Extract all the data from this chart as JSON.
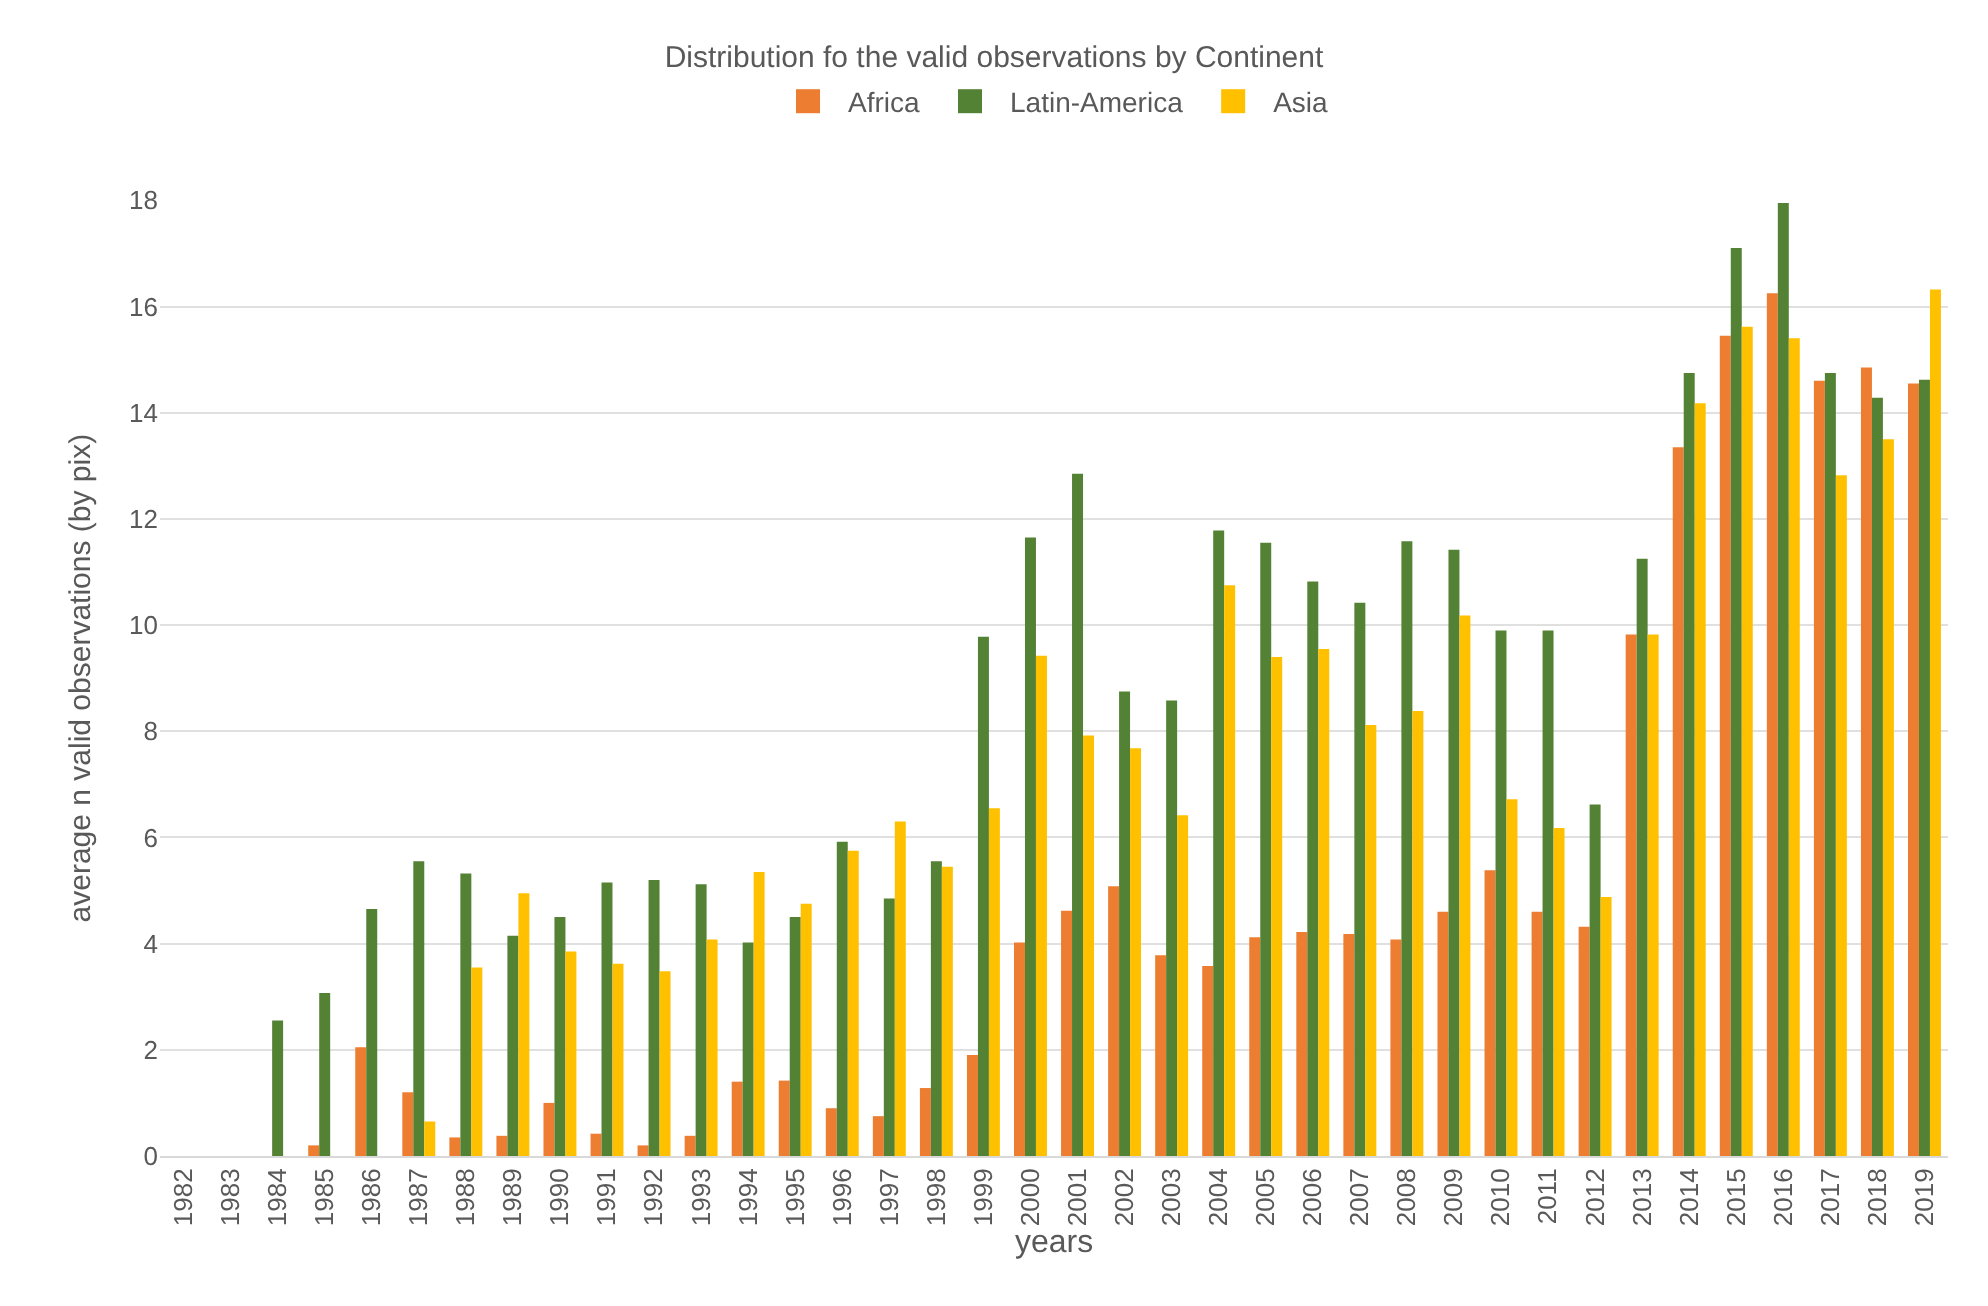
{
  "chart_data": {
    "type": "bar",
    "title": "Distribution fo the valid observations by Continent",
    "xlabel": "years",
    "ylabel": "average n valid observations (by pix)",
    "categories": [
      "1982",
      "1983",
      "1984",
      "1985",
      "1986",
      "1987",
      "1988",
      "1989",
      "1990",
      "1991",
      "1992",
      "1993",
      "1994",
      "1995",
      "1996",
      "1997",
      "1998",
      "1999",
      "2000",
      "2001",
      "2002",
      "2003",
      "2004",
      "2005",
      "2006",
      "2007",
      "2008",
      "2009",
      "2010",
      "2011",
      "2012",
      "2013",
      "2014",
      "2015",
      "2016",
      "2017",
      "2018",
      "2019"
    ],
    "series": [
      {
        "name": "Africa",
        "color": "#ed7d31",
        "values": [
          0,
          0,
          0,
          0.2,
          2.05,
          1.2,
          0.35,
          0.38,
          1.0,
          0.42,
          0.2,
          0.38,
          1.4,
          1.42,
          0.9,
          0.75,
          1.28,
          1.9,
          4.02,
          4.62,
          5.08,
          3.78,
          3.58,
          4.12,
          4.22,
          4.18,
          4.08,
          4.6,
          5.38,
          4.6,
          4.32,
          9.82,
          13.35,
          15.45,
          16.25,
          14.6,
          14.85,
          14.55
        ]
      },
      {
        "name": "Latin-America",
        "color": "#548235",
        "values": [
          0,
          0,
          2.55,
          3.07,
          4.65,
          5.55,
          5.32,
          4.15,
          4.5,
          5.15,
          5.2,
          5.12,
          4.02,
          4.5,
          5.92,
          4.85,
          5.55,
          9.78,
          11.65,
          12.85,
          8.75,
          8.58,
          11.78,
          11.55,
          10.82,
          10.42,
          11.58,
          11.42,
          9.9,
          9.9,
          6.62,
          11.25,
          14.75,
          17.1,
          17.95,
          14.75,
          14.28,
          14.62
        ]
      },
      {
        "name": "Asia",
        "color": "#ffc000",
        "values": [
          0,
          0,
          0,
          0,
          0,
          0.65,
          3.55,
          4.95,
          3.85,
          3.62,
          3.48,
          4.08,
          5.35,
          4.75,
          5.75,
          6.3,
          5.45,
          6.55,
          9.42,
          7.92,
          7.68,
          6.42,
          10.75,
          9.4,
          9.55,
          8.12,
          8.38,
          10.18,
          6.72,
          6.18,
          4.88,
          9.82,
          14.18,
          15.62,
          15.4,
          12.82,
          13.5,
          16.32
        ]
      }
    ],
    "ylim": [
      0,
      18
    ],
    "yticks": [
      0,
      2,
      4,
      6,
      8,
      10,
      12,
      14,
      16,
      18
    ],
    "grid": "y",
    "legend": "top"
  }
}
